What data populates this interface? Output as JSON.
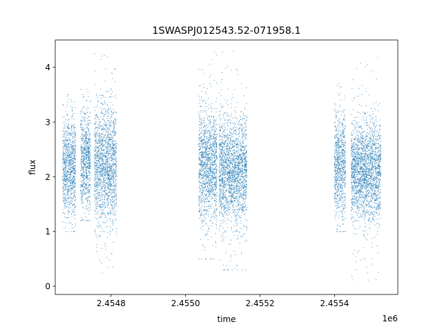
{
  "chart_data": {
    "type": "scatter",
    "title": "1SWASPJ012543.52-071958.1",
    "xlabel": "time",
    "ylabel": "flux",
    "x_offset_label": "1e6",
    "xlim": [
      2454650,
      2455570
    ],
    "ylim": [
      -0.15,
      4.5
    ],
    "x_ticks": [
      2454800,
      2455000,
      2455200,
      2455400
    ],
    "x_tick_labels": [
      "2.4548",
      "2.4550",
      "2.4552",
      "2.4554"
    ],
    "y_ticks": [
      0,
      1,
      2,
      3,
      4
    ],
    "y_tick_labels": [
      "0",
      "1",
      "2",
      "3",
      "4"
    ],
    "grid": false,
    "legend": "none",
    "marker_color": "#1f77b4",
    "series": [
      {
        "values": [
          {
            "x_range": [
              2454670,
              2454705
            ],
            "y_center": 2.2,
            "y_spread": 0.45,
            "y_min": 1.0,
            "y_max": 3.5
          },
          {
            "x_range": [
              2454718,
              2454745
            ],
            "y_center": 2.3,
            "y_spread": 0.45,
            "y_min": 1.2,
            "y_max": 3.6
          },
          {
            "x_range": [
              2454755,
              2454815
            ],
            "y_center": 2.2,
            "y_spread": 0.55,
            "y_min": 0.2,
            "y_max": 4.25
          },
          {
            "x_range": [
              2455035,
              2455085
            ],
            "y_center": 2.2,
            "y_spread": 0.5,
            "y_min": 0.5,
            "y_max": 4.3
          },
          {
            "x_range": [
              2455090,
              2455165
            ],
            "y_center": 2.1,
            "y_spread": 0.5,
            "y_min": 0.3,
            "y_max": 4.3
          },
          {
            "x_range": [
              2455400,
              2455430
            ],
            "y_center": 2.2,
            "y_spread": 0.5,
            "y_min": 1.0,
            "y_max": 3.9
          },
          {
            "x_range": [
              2455445,
              2455525
            ],
            "y_center": 2.1,
            "y_spread": 0.45,
            "y_min": 0.1,
            "y_max": 4.2
          }
        ]
      }
    ]
  }
}
